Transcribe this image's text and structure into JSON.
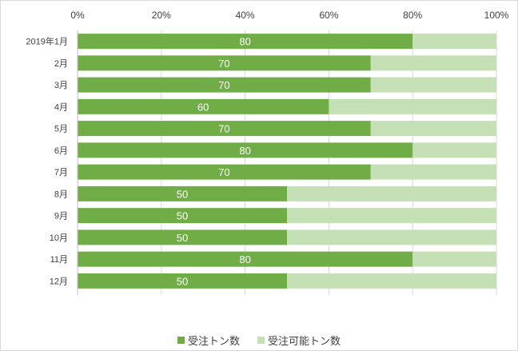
{
  "chart_data": {
    "type": "bar",
    "orientation": "horizontal",
    "stacked": "percent",
    "categories": [
      "2019年1月",
      "2月",
      "3月",
      "4月",
      "5月",
      "6月",
      "7月",
      "8月",
      "9月",
      "10月",
      "11月",
      "12月"
    ],
    "series": [
      {
        "name": "受注トン数",
        "values": [
          80,
          70,
          70,
          60,
          70,
          80,
          70,
          50,
          50,
          50,
          80,
          50
        ],
        "color": "#70ad47"
      },
      {
        "name": "受注可能トン数",
        "values": [
          20,
          30,
          30,
          40,
          30,
          20,
          30,
          50,
          50,
          50,
          20,
          50
        ],
        "color": "#c5e0b4"
      }
    ],
    "x_ticks": [
      "0%",
      "20%",
      "40%",
      "60%",
      "80%",
      "100%"
    ],
    "xlim": [
      0,
      100
    ],
    "axis_position": "top",
    "grid": true,
    "legend_position": "bottom",
    "data_labels": "first-series"
  }
}
